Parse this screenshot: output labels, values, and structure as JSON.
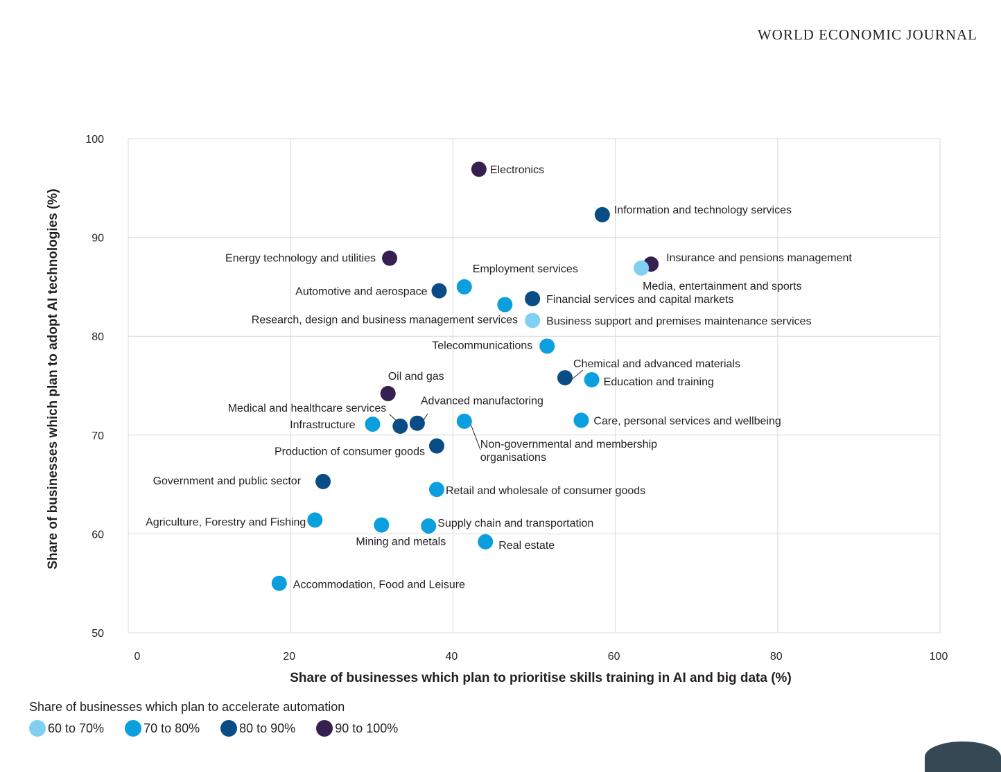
{
  "header": {
    "publication": "WORLD ECONOMIC JOURNAL"
  },
  "chart_data": {
    "type": "scatter",
    "xlabel": "Share of businesses which plan to prioritise skills training in AI and big data (%)",
    "ylabel": "Share of businesses which plan to adopt AI technologies (%)",
    "xlim": [
      0,
      100
    ],
    "ylim": [
      50,
      100
    ],
    "x_ticks": [
      "0",
      "20",
      "40",
      "60",
      "80",
      "100"
    ],
    "y_ticks": [
      "100",
      "90",
      "80",
      "70",
      "60",
      "50"
    ],
    "grid": true,
    "legend": {
      "title": "Share of businesses which plan to accelerate automation",
      "placement": "bottom-left",
      "items": [
        {
          "label": "60 to 70%",
          "color": "#7fd0f2"
        },
        {
          "label": "70 to 80%",
          "color": "#0ba0dd"
        },
        {
          "label": "80 to 90%",
          "color": "#0a4c85"
        },
        {
          "label": "90 to 100%",
          "color": "#35204f"
        }
      ]
    },
    "points": [
      {
        "label": "Electronics",
        "x": 43.2,
        "y": 96.9,
        "group": 3
      },
      {
        "label": "Information and technology services",
        "x": 58.4,
        "y": 92.3,
        "group": 2
      },
      {
        "label": "Energy technology and utilities",
        "x": 32.2,
        "y": 87.9,
        "group": 3
      },
      {
        "label": "Insurance and pensions management",
        "x": 64.4,
        "y": 87.3,
        "group": 3
      },
      {
        "label": "Media, entertainment and sports",
        "x": 63.2,
        "y": 86.9,
        "group": 0
      },
      {
        "label": "Employment services",
        "x": 41.4,
        "y": 85.0,
        "group": 1
      },
      {
        "label": "Automotive and aerospace",
        "x": 38.3,
        "y": 84.6,
        "group": 2
      },
      {
        "label": "Financial services and capital markets",
        "x": 49.8,
        "y": 83.8,
        "group": 2
      },
      {
        "label": "Research, design and business management services",
        "x": 46.4,
        "y": 83.2,
        "group": 1
      },
      {
        "label": "Business support and premises maintenance services",
        "x": 49.8,
        "y": 81.6,
        "group": 0
      },
      {
        "label": "Telecommunications",
        "x": 51.6,
        "y": 79.0,
        "group": 1
      },
      {
        "label": "Chemical and advanced materials",
        "x": 53.8,
        "y": 75.8,
        "group": 2
      },
      {
        "label": "Education and training",
        "x": 57.1,
        "y": 75.6,
        "group": 1
      },
      {
        "label": "Oil and gas",
        "x": 32.0,
        "y": 74.2,
        "group": 3
      },
      {
        "label": "Care, personal services and wellbeing",
        "x": 55.8,
        "y": 71.5,
        "group": 1
      },
      {
        "label": "Non-governmental and membership organisations",
        "x": 41.4,
        "y": 71.4,
        "group": 1
      },
      {
        "label": "Advanced manufactoring",
        "x": 35.6,
        "y": 71.2,
        "group": 2
      },
      {
        "label": "Infrastructure",
        "x": 30.1,
        "y": 71.1,
        "group": 1
      },
      {
        "label": "Medical and healthcare services",
        "x": 33.5,
        "y": 70.9,
        "group": 2
      },
      {
        "label": "Production of consumer goods",
        "x": 38.0,
        "y": 68.9,
        "group": 2
      },
      {
        "label": "Government and public sector",
        "x": 24.0,
        "y": 65.3,
        "group": 2
      },
      {
        "label": "Retail and wholesale of consumer goods",
        "x": 38.0,
        "y": 64.5,
        "group": 1
      },
      {
        "label": "Agriculture, Forestry and Fishing",
        "x": 23.0,
        "y": 61.4,
        "group": 1
      },
      {
        "label": "Mining and metals",
        "x": 31.2,
        "y": 60.9,
        "group": 1
      },
      {
        "label": "Supply chain and transportation",
        "x": 37.0,
        "y": 60.8,
        "group": 1
      },
      {
        "label": "Real estate",
        "x": 44.0,
        "y": 59.2,
        "group": 1
      },
      {
        "label": "Accommodation, Food and Leisure",
        "x": 18.6,
        "y": 55.0,
        "group": 1
      }
    ]
  }
}
